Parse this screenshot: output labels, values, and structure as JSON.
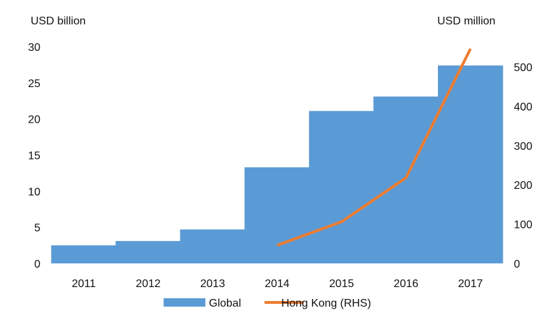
{
  "chart_data": {
    "type": "bar+line",
    "categories": [
      "2011",
      "2012",
      "2013",
      "2014",
      "2015",
      "2016",
      "2017"
    ],
    "left_axis": {
      "label": "USD billion",
      "ylim": [
        0,
        30
      ],
      "ticks": [
        0,
        5,
        10,
        15,
        20,
        25,
        30
      ]
    },
    "right_axis": {
      "label": "USD million",
      "ylim": [
        0,
        500
      ],
      "ticks": [
        0,
        100,
        200,
        300,
        400,
        500
      ]
    },
    "series": [
      {
        "name": "Global",
        "type": "area-step",
        "axis": "left",
        "color": "#5b9bd5",
        "values": [
          2.5,
          3.1,
          4.7,
          13.3,
          21.1,
          23.1,
          27.4
        ]
      },
      {
        "name": "Hong Kong (RHS)",
        "type": "line",
        "axis": "right",
        "color": "#ed7d31",
        "values": [
          null,
          null,
          null,
          46,
          106,
          218,
          546
        ]
      }
    ],
    "grid": false,
    "legend": "bottom"
  }
}
